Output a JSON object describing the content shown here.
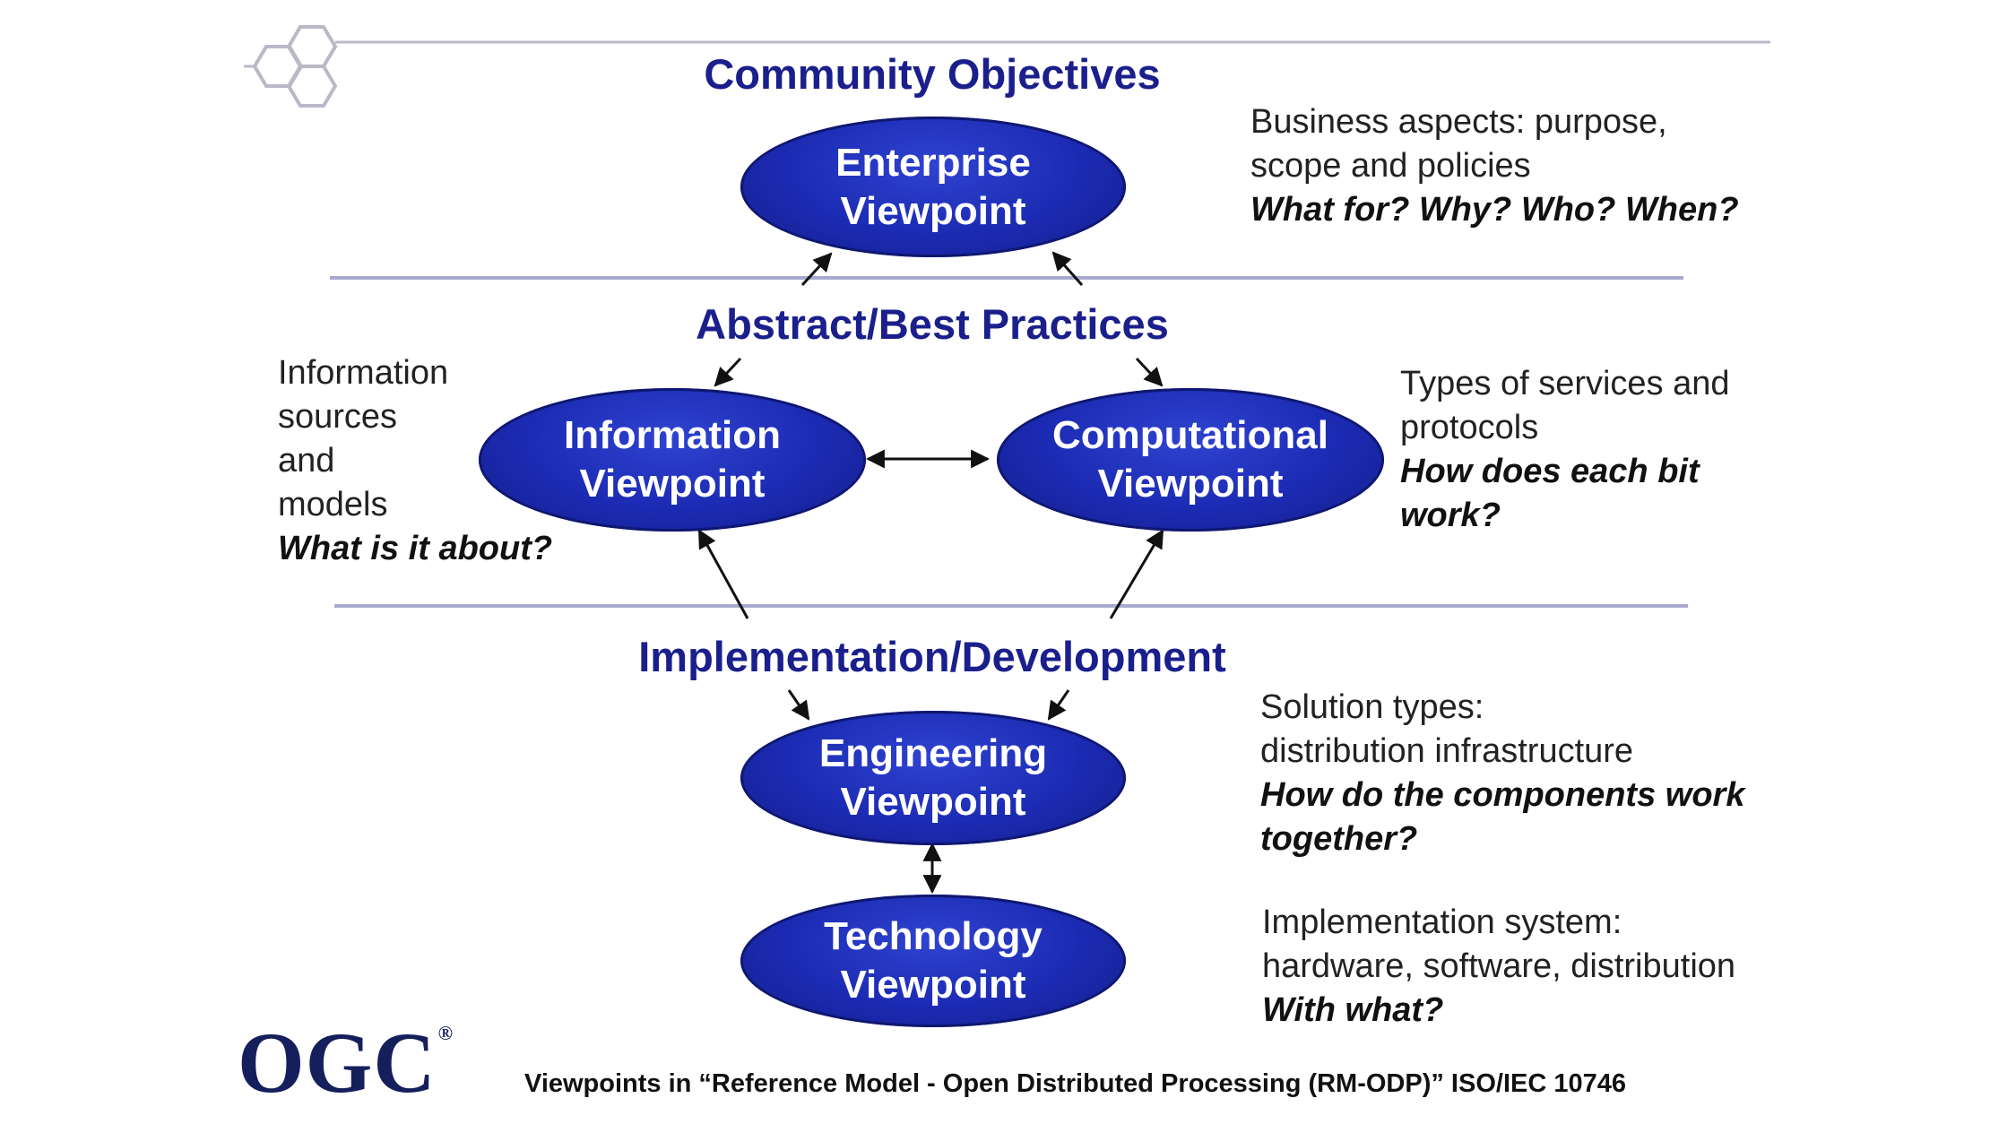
{
  "sections": {
    "community": "Community Objectives",
    "abstract": "Abstract/Best Practices",
    "implementation": "Implementation/Development"
  },
  "nodes": {
    "enterprise": [
      "Enterprise",
      "Viewpoint"
    ],
    "information": [
      "Information",
      "Viewpoint"
    ],
    "computational": [
      "Computational",
      "Viewpoint"
    ],
    "engineering": [
      "Engineering",
      "Viewpoint"
    ],
    "technology": [
      "Technology",
      "Viewpoint"
    ]
  },
  "descriptions": {
    "enterprise": {
      "lines": [
        "Business aspects: purpose,",
        "scope and policies"
      ],
      "question": "What for? Why? Who? When?"
    },
    "information": {
      "lines": [
        "Information",
        "sources",
        "and",
        "models"
      ],
      "question": "What is it about?"
    },
    "computational": {
      "lines": [
        "Types of services and",
        "protocols"
      ],
      "question_lines": [
        "How does each bit",
        "work?"
      ]
    },
    "engineering": {
      "lines": [
        "Solution types:",
        "distribution infrastructure"
      ],
      "question_lines": [
        "How do the components work",
        "together?"
      ]
    },
    "technology": {
      "lines": [
        "Implementation system:",
        "hardware, software, distribution"
      ],
      "question": "With what?"
    }
  },
  "logo": {
    "text": "OGC",
    "mark": "®"
  },
  "caption": "Viewpoints in “Reference Model - Open Distributed Processing (RM-ODP)”  ISO/IEC 10746",
  "colors": {
    "node_fill": "#1b2ab2",
    "section_text": "#1a1f8c",
    "divider": "#a9a9d0",
    "logo": "#141f5c"
  },
  "icons": [
    "hexagon-cluster-icon"
  ]
}
